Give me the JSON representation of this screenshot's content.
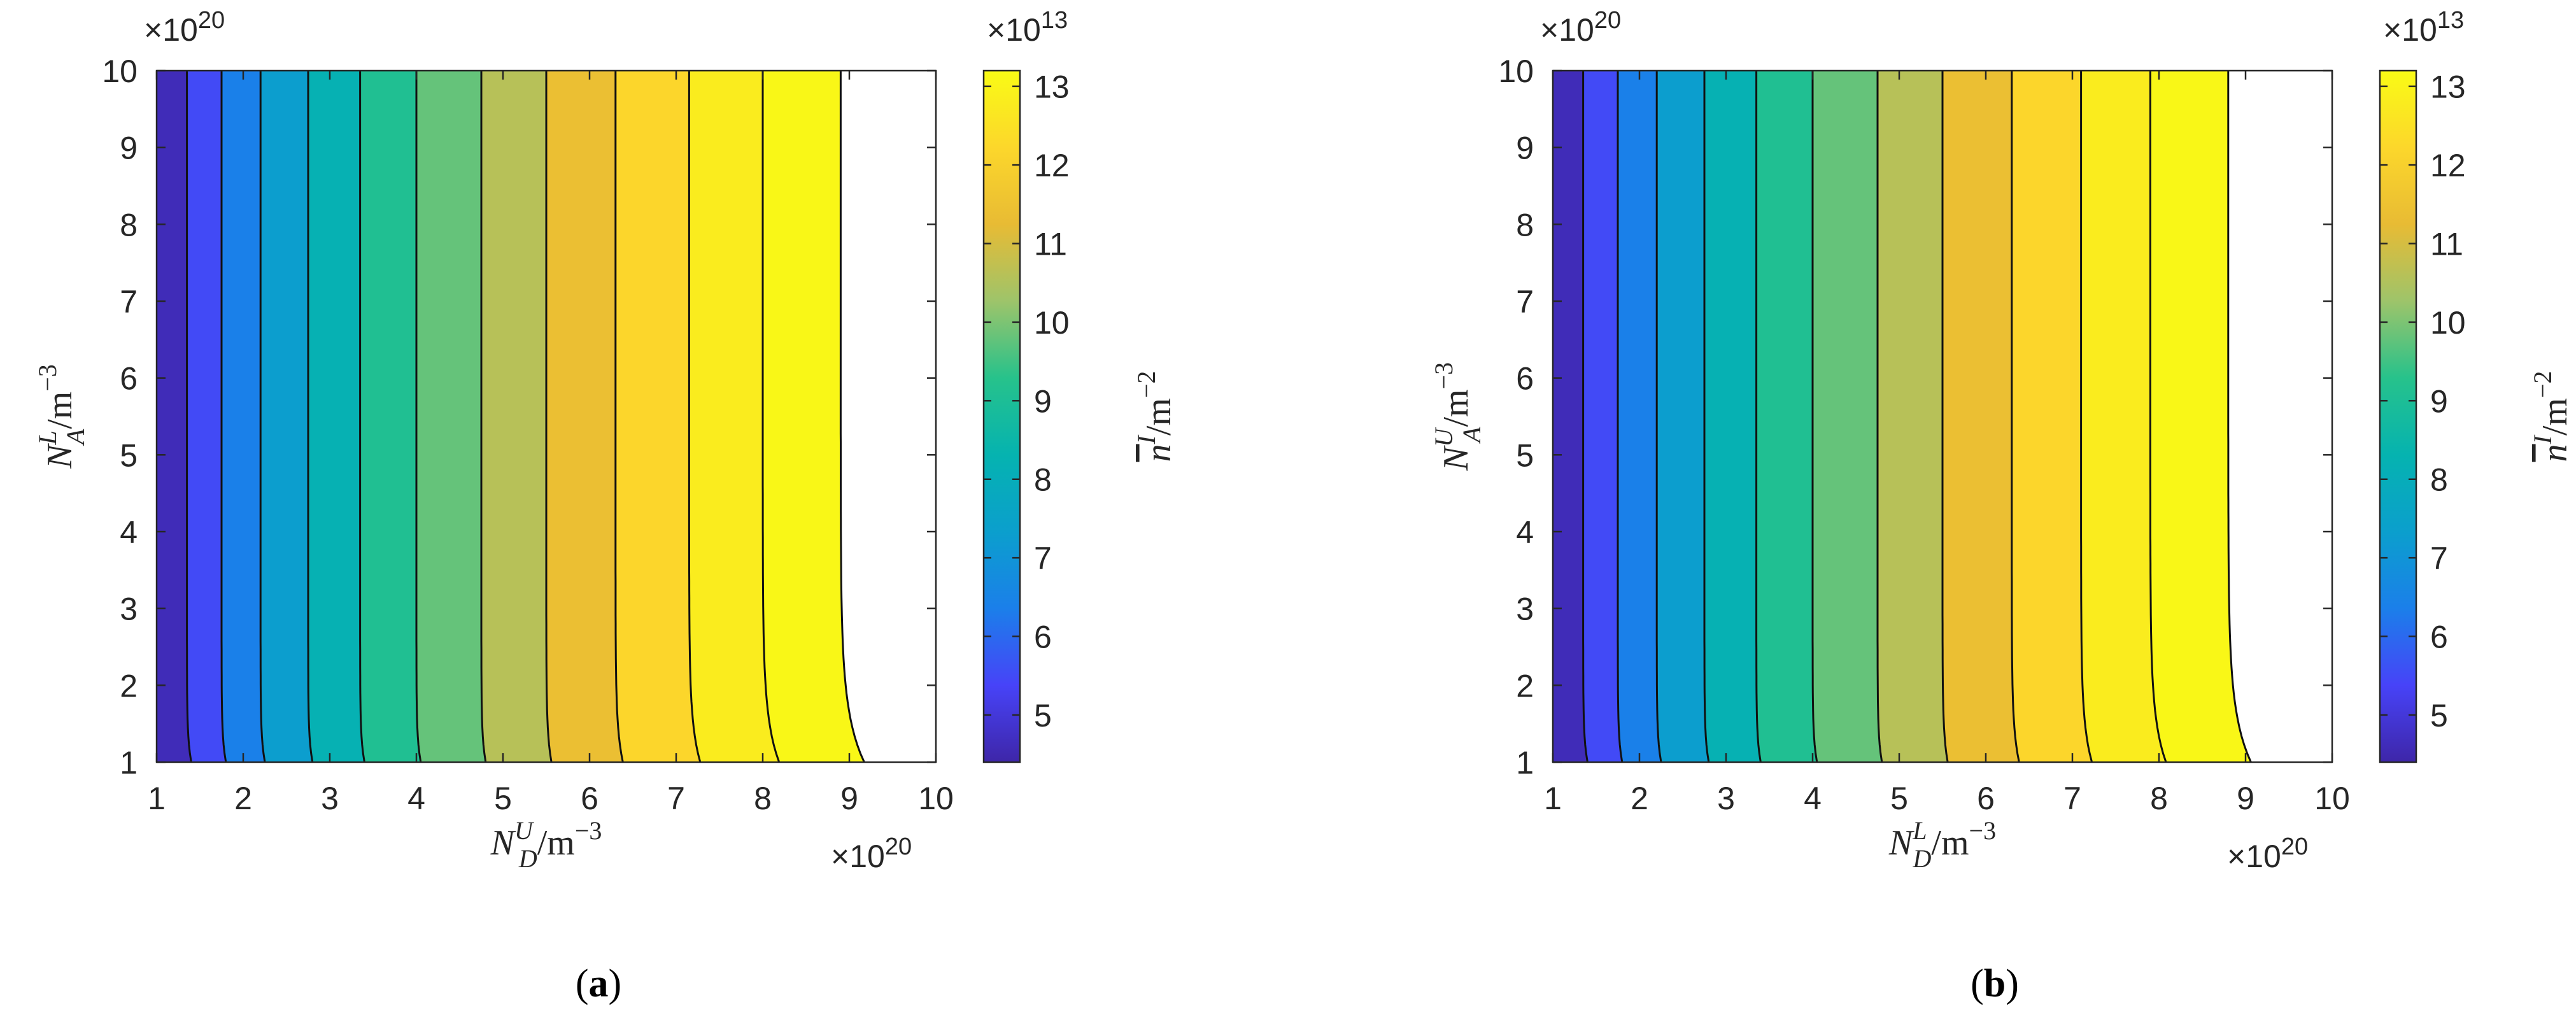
{
  "chart_data": [
    {
      "type": "heatmap",
      "panel_label": "(a)",
      "panel_label_parts": [
        "(",
        "a",
        ")"
      ],
      "xlabel": "N_D^U/m^-3",
      "xlabel_parts": {
        "base": "N",
        "sub": "D",
        "sup": "U",
        "unit": "/m",
        "unit_exp": "−3"
      },
      "ylabel": "N_A^L/m^-3",
      "ylabel_parts": {
        "base": "N",
        "sub": "A",
        "sup": "L",
        "unit": "/m",
        "unit_exp": "−3"
      },
      "x_multiplier": {
        "base": "×10",
        "exp": "20"
      },
      "y_multiplier": {
        "base": "×10",
        "exp": "20"
      },
      "xlim": [
        1,
        10
      ],
      "ylim": [
        1,
        10
      ],
      "x_ticks": [
        "1",
        "2",
        "3",
        "4",
        "5",
        "6",
        "7",
        "8",
        "9",
        "10"
      ],
      "y_ticks": [
        "1",
        "2",
        "3",
        "4",
        "5",
        "6",
        "7",
        "8",
        "9",
        "10"
      ],
      "colorbar": {
        "label": "n̄^I/m^-2",
        "label_parts": {
          "base": "n",
          "sup": "I",
          "unit": "/m",
          "unit_exp": "−2"
        },
        "multiplier": {
          "base": "×10",
          "exp": "13"
        },
        "range": [
          4.4,
          13.2
        ],
        "ticks": [
          "5",
          "6",
          "7",
          "8",
          "9",
          "10",
          "11",
          "12",
          "13"
        ]
      },
      "contour_levels": [
        1.35,
        1.75,
        2.2,
        2.75,
        3.35,
        4.0,
        4.75,
        5.5,
        6.3,
        7.15,
        8.0,
        8.9
      ],
      "band_values": [
        4.6,
        5.5,
        6.4,
        7.3,
        8.2,
        9.1,
        9.8,
        10.6,
        11.4,
        12.2,
        12.8,
        13.1
      ]
    },
    {
      "type": "heatmap",
      "panel_label": "(b)",
      "panel_label_parts": [
        "(",
        "b",
        ")"
      ],
      "xlabel": "N_D^L/m^-3",
      "xlabel_parts": {
        "base": "N",
        "sub": "D",
        "sup": "L",
        "unit": "/m",
        "unit_exp": "−3"
      },
      "ylabel": "N_A^U/m^-3",
      "ylabel_parts": {
        "base": "N",
        "sub": "A",
        "sup": "U",
        "unit": "/m",
        "unit_exp": "−3"
      },
      "x_multiplier": {
        "base": "×10",
        "exp": "20"
      },
      "y_multiplier": {
        "base": "×10",
        "exp": "20"
      },
      "xlim": [
        1,
        10
      ],
      "ylim": [
        1,
        10
      ],
      "x_ticks": [
        "1",
        "2",
        "3",
        "4",
        "5",
        "6",
        "7",
        "8",
        "9",
        "10"
      ],
      "y_ticks": [
        "1",
        "2",
        "3",
        "4",
        "5",
        "6",
        "7",
        "8",
        "9",
        "10"
      ],
      "colorbar": {
        "label": "n̄^I/m^-2",
        "label_parts": {
          "base": "n",
          "sup": "I",
          "unit": "/m",
          "unit_exp": "−2"
        },
        "multiplier": {
          "base": "×10",
          "exp": "13"
        },
        "range": [
          4.4,
          13.2
        ],
        "ticks": [
          "5",
          "6",
          "7",
          "8",
          "9",
          "10",
          "11",
          "12",
          "13"
        ]
      },
      "contour_levels": [
        1.35,
        1.75,
        2.2,
        2.75,
        3.35,
        4.0,
        4.75,
        5.5,
        6.3,
        7.1,
        7.9,
        8.8
      ],
      "band_values": [
        4.6,
        5.5,
        6.4,
        7.3,
        8.2,
        9.1,
        9.8,
        10.6,
        11.4,
        12.2,
        12.8,
        13.1
      ]
    }
  ],
  "colormap": [
    "#3e26a8",
    "#4743f8",
    "#1b7fea",
    "#0b9fcd",
    "#05b3b0",
    "#27c28b",
    "#9ec46a",
    "#e8bb34",
    "#fcd72b",
    "#f9fb15"
  ]
}
